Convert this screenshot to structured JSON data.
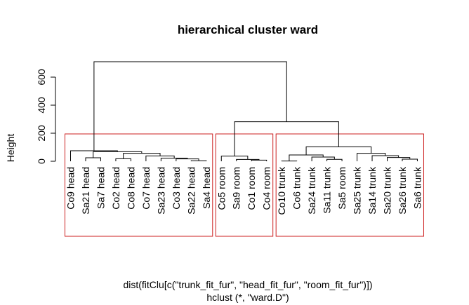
{
  "chart_data": {
    "type": "dendrogram",
    "title": "hierarchical cluster ward",
    "ylabel": "Height",
    "xlabel": "dist(fitClu[c(\"trunk_fit_fur\", \"head_fit_fur\", \"room_fit_fur\")])",
    "sublabel": "hclust (*, \"ward.D\")",
    "y_ticks": [
      "0",
      "200",
      "400",
      "600"
    ],
    "ylim": [
      0,
      700
    ],
    "leaves": [
      "Co9 head",
      "Sa21 head",
      "Sa7 head",
      "Co2 head",
      "Co8 head",
      "Co7 head",
      "Sa23 head",
      "Co3 head",
      "Sa22 head",
      "Sa4 head",
      "Co5 room",
      "Sa9 room",
      "Co1 room",
      "Co4 room",
      "Co10 trunk",
      "Co6 trunk",
      "Sa24 trunk",
      "Sa11 trunk",
      "Sa5 room",
      "Sa25 trunk",
      "Sa14 trunk",
      "Sa20 trunk",
      "Sa26 trunk",
      "Sa6 trunk"
    ],
    "merges": [
      [
        -2,
        -3,
        25
      ],
      [
        -9,
        -10,
        4
      ],
      [
        -8,
        2,
        17
      ],
      [
        -7,
        3,
        22
      ],
      [
        -6,
        4,
        38
      ],
      [
        -4,
        -5,
        18
      ],
      [
        6,
        5,
        57
      ],
      [
        1,
        7,
        68
      ],
      [
        -1,
        8,
        75
      ],
      [
        -13,
        -14,
        8
      ],
      [
        -12,
        10,
        13
      ],
      [
        -11,
        11,
        37
      ],
      [
        -15,
        -16,
        2
      ],
      [
        -18,
        -19,
        14
      ],
      [
        -17,
        14,
        30
      ],
      [
        13,
        15,
        45
      ],
      [
        -23,
        -24,
        15
      ],
      [
        -22,
        17,
        27
      ],
      [
        -21,
        18,
        40
      ],
      [
        -20,
        19,
        57
      ],
      [
        16,
        20,
        103
      ],
      [
        12,
        21,
        282
      ],
      [
        9,
        22,
        710
      ]
    ],
    "cluster_cut": 200,
    "cluster_groups": [
      [
        1,
        10
      ],
      [
        11,
        14
      ],
      [
        15,
        24
      ]
    ],
    "colors": {
      "tree": "#000000",
      "cluster_box": "#CC1F1F"
    }
  }
}
